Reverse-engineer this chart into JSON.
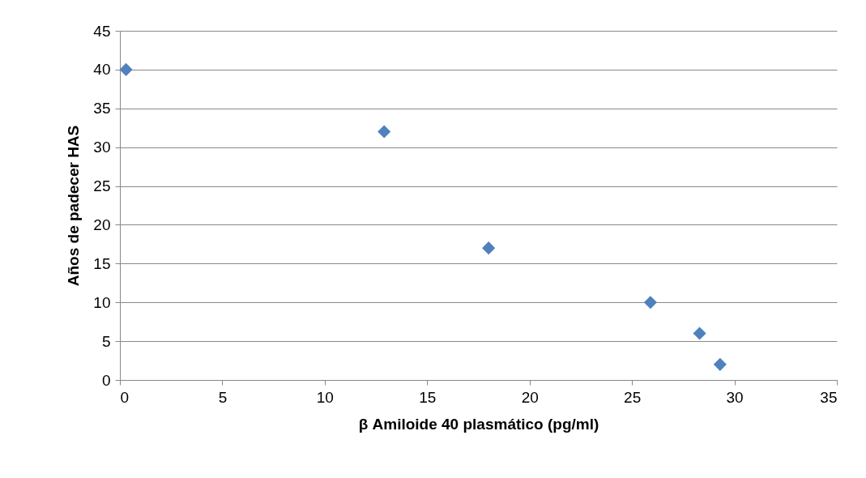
{
  "chart_data": {
    "type": "scatter",
    "xlabel": "β Amiloide 40 plasmático (pg/ml)",
    "ylabel": "Años de padecer HAS",
    "x": [
      0.3,
      12.9,
      18.0,
      25.9,
      28.3,
      29.3
    ],
    "values": [
      40,
      32,
      17,
      10,
      6,
      2
    ],
    "color": "#4f81bd",
    "marker": "diamond",
    "xlim": [
      0,
      35
    ],
    "xticks": [
      0,
      5,
      10,
      15,
      20,
      25,
      30,
      35
    ],
    "ylim": [
      0,
      45
    ],
    "yticks": [
      0,
      5,
      10,
      15,
      20,
      25,
      30,
      35,
      40,
      45
    ],
    "grid": "y"
  }
}
